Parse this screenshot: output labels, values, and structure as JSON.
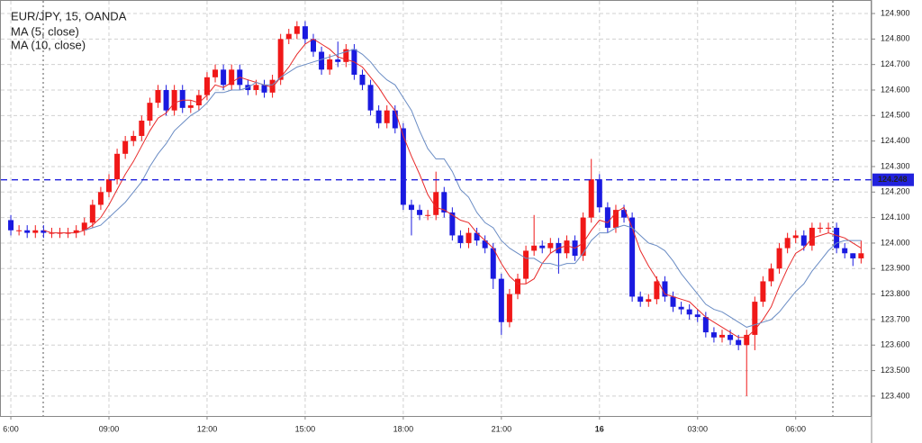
{
  "chart_data": {
    "type": "candlestick",
    "title": "EUR/JPY, 15, OANDA",
    "up_color": "#f01818",
    "down_color": "#1a1ae0",
    "categories": [
      "6:00",
      null,
      null,
      null,
      null,
      null,
      null,
      null,
      null,
      null,
      null,
      null,
      "09:00",
      null,
      null,
      null,
      null,
      null,
      null,
      null,
      null,
      null,
      null,
      null,
      "12:00",
      null,
      null,
      null,
      null,
      null,
      null,
      null,
      null,
      null,
      null,
      null,
      "15:00",
      null,
      null,
      null,
      null,
      null,
      null,
      null,
      null,
      null,
      null,
      null,
      "18:00",
      null,
      null,
      null,
      null,
      null,
      null,
      null,
      null,
      null,
      null,
      null,
      "21:00",
      null,
      null,
      null,
      null,
      null,
      null,
      null,
      null,
      null,
      null,
      null,
      "16",
      null,
      null,
      null,
      null,
      null,
      null,
      null,
      null,
      null,
      null,
      null,
      "03:00",
      null,
      null,
      null,
      null,
      null,
      null,
      null,
      null,
      null,
      null,
      null,
      "06:00",
      null,
      null,
      null,
      null,
      null,
      null,
      null,
      null
    ],
    "ohlc": [
      [
        124.09,
        124.11,
        124.03,
        124.05
      ],
      [
        124.05,
        124.07,
        124.03,
        124.05
      ],
      [
        124.05,
        124.07,
        124.02,
        124.04
      ],
      [
        124.04,
        124.07,
        124.02,
        124.05
      ],
      [
        124.05,
        124.07,
        124.02,
        124.04
      ],
      [
        124.04,
        124.06,
        124.02,
        124.04
      ],
      [
        124.04,
        124.06,
        124.02,
        124.04
      ],
      [
        124.04,
        124.06,
        124.02,
        124.04
      ],
      [
        124.04,
        124.07,
        124.02,
        124.05
      ],
      [
        124.05,
        124.1,
        124.03,
        124.08
      ],
      [
        124.08,
        124.17,
        124.06,
        124.15
      ],
      [
        124.15,
        124.22,
        124.13,
        124.2
      ],
      [
        124.2,
        124.27,
        124.18,
        124.25
      ],
      [
        124.25,
        124.37,
        124.23,
        124.35
      ],
      [
        124.35,
        124.42,
        124.33,
        124.4
      ],
      [
        124.4,
        124.44,
        124.38,
        124.42
      ],
      [
        124.42,
        124.5,
        124.4,
        124.48
      ],
      [
        124.48,
        124.57,
        124.46,
        124.55
      ],
      [
        124.55,
        124.62,
        124.53,
        124.6
      ],
      [
        124.6,
        124.62,
        124.5,
        124.52
      ],
      [
        124.52,
        124.62,
        124.5,
        124.6
      ],
      [
        124.6,
        124.62,
        124.51,
        124.53
      ],
      [
        124.53,
        124.56,
        124.51,
        124.54
      ],
      [
        124.54,
        124.6,
        124.52,
        124.58
      ],
      [
        124.58,
        124.67,
        124.56,
        124.65
      ],
      [
        124.65,
        124.7,
        124.63,
        124.68
      ],
      [
        124.68,
        124.7,
        124.6,
        124.62
      ],
      [
        124.62,
        124.7,
        124.6,
        124.68
      ],
      [
        124.68,
        124.7,
        124.6,
        124.62
      ],
      [
        124.62,
        124.64,
        124.58,
        124.6
      ],
      [
        124.6,
        124.64,
        124.58,
        124.62
      ],
      [
        124.62,
        124.64,
        124.57,
        124.59
      ],
      [
        124.59,
        124.66,
        124.57,
        124.64
      ],
      [
        124.64,
        124.82,
        124.62,
        124.8
      ],
      [
        124.8,
        124.84,
        124.78,
        124.82
      ],
      [
        124.82,
        124.87,
        124.8,
        124.85
      ],
      [
        124.85,
        124.87,
        124.78,
        124.8
      ],
      [
        124.8,
        124.82,
        124.73,
        124.75
      ],
      [
        124.75,
        124.77,
        124.66,
        124.68
      ],
      [
        124.68,
        124.74,
        124.66,
        124.72
      ],
      [
        124.72,
        124.79,
        124.69,
        124.71
      ],
      [
        124.71,
        124.78,
        124.69,
        124.76
      ],
      [
        124.76,
        124.78,
        124.64,
        124.66
      ],
      [
        124.66,
        124.68,
        124.6,
        124.62
      ],
      [
        124.62,
        124.64,
        124.5,
        124.52
      ],
      [
        124.52,
        124.54,
        124.45,
        124.47
      ],
      [
        124.47,
        124.54,
        124.45,
        124.52
      ],
      [
        124.52,
        124.54,
        124.43,
        124.45
      ],
      [
        124.45,
        124.47,
        124.13,
        124.15
      ],
      [
        124.15,
        124.17,
        124.03,
        124.13
      ],
      [
        124.13,
        124.15,
        124.09,
        124.11
      ],
      [
        124.11,
        124.13,
        124.09,
        124.11
      ],
      [
        124.11,
        124.28,
        124.09,
        124.2
      ],
      [
        124.2,
        124.22,
        124.1,
        124.12
      ],
      [
        124.12,
        124.14,
        124.01,
        124.03
      ],
      [
        124.03,
        124.05,
        123.98,
        124.0
      ],
      [
        124.0,
        124.06,
        123.98,
        124.04
      ],
      [
        124.04,
        124.06,
        123.99,
        124.01
      ],
      [
        124.01,
        124.03,
        123.96,
        123.98
      ],
      [
        123.98,
        124.0,
        123.82,
        123.86
      ],
      [
        123.86,
        123.88,
        123.64,
        123.69
      ],
      [
        123.69,
        123.82,
        123.67,
        123.8
      ],
      [
        123.8,
        123.88,
        123.78,
        123.86
      ],
      [
        123.86,
        123.99,
        123.84,
        123.97
      ],
      [
        123.97,
        124.11,
        123.95,
        123.99
      ],
      [
        123.99,
        124.01,
        123.96,
        123.98
      ],
      [
        123.98,
        124.02,
        123.96,
        124.0
      ],
      [
        124.0,
        124.02,
        123.88,
        123.96
      ],
      [
        123.96,
        124.03,
        123.94,
        124.01
      ],
      [
        124.01,
        124.03,
        123.93,
        123.95
      ],
      [
        123.95,
        124.12,
        123.93,
        124.1
      ],
      [
        124.1,
        124.33,
        124.08,
        124.25
      ],
      [
        124.25,
        124.27,
        124.12,
        124.14
      ],
      [
        124.14,
        124.16,
        124.04,
        124.06
      ],
      [
        124.06,
        124.15,
        124.04,
        124.13
      ],
      [
        124.13,
        124.15,
        124.08,
        124.1
      ],
      [
        124.1,
        124.12,
        123.77,
        123.79
      ],
      [
        123.79,
        123.81,
        123.75,
        123.77
      ],
      [
        123.77,
        123.8,
        123.75,
        123.78
      ],
      [
        123.78,
        123.87,
        123.76,
        123.85
      ],
      [
        123.85,
        123.87,
        123.77,
        123.79
      ],
      [
        123.79,
        123.81,
        123.73,
        123.75
      ],
      [
        123.75,
        123.77,
        123.72,
        123.74
      ],
      [
        123.74,
        123.76,
        123.7,
        123.72
      ],
      [
        123.72,
        123.74,
        123.69,
        123.71
      ],
      [
        123.71,
        123.73,
        123.63,
        123.65
      ],
      [
        123.65,
        123.67,
        123.61,
        123.63
      ],
      [
        123.63,
        123.66,
        123.61,
        123.64
      ],
      [
        123.64,
        123.66,
        123.6,
        123.62
      ],
      [
        123.62,
        123.64,
        123.58,
        123.6
      ],
      [
        123.6,
        123.66,
        123.4,
        123.64
      ],
      [
        123.64,
        123.79,
        123.58,
        123.77
      ],
      [
        123.77,
        123.87,
        123.75,
        123.85
      ],
      [
        123.85,
        123.92,
        123.83,
        123.9
      ],
      [
        123.9,
        124.0,
        123.88,
        123.98
      ],
      [
        123.98,
        124.04,
        123.96,
        124.02
      ],
      [
        124.02,
        124.05,
        124.0,
        124.03
      ],
      [
        124.03,
        124.05,
        123.97,
        123.99
      ],
      [
        123.99,
        124.08,
        123.97,
        124.06
      ],
      [
        124.06,
        124.08,
        124.04,
        124.06
      ],
      [
        124.06,
        124.08,
        124.04,
        124.06
      ],
      [
        124.06,
        124.08,
        123.96,
        123.98
      ],
      [
        123.98,
        124.0,
        123.94,
        123.96
      ],
      [
        123.96,
        123.96,
        123.91,
        123.94
      ],
      [
        123.94,
        124.01,
        123.92,
        123.96
      ]
    ],
    "series": [
      {
        "name": "MA (5, close)",
        "color": "#e82a2a",
        "values": [
          null,
          null,
          null,
          null,
          124.05,
          124.04,
          124.04,
          124.04,
          124.04,
          124.05,
          124.07,
          124.1,
          124.15,
          124.21,
          124.27,
          124.32,
          124.38,
          124.44,
          124.49,
          124.51,
          124.55,
          124.56,
          124.56,
          124.55,
          124.58,
          124.62,
          124.61,
          124.63,
          124.65,
          124.64,
          124.63,
          124.62,
          124.61,
          124.65,
          124.69,
          124.74,
          124.78,
          124.8,
          124.78,
          124.76,
          124.73,
          124.72,
          124.71,
          124.69,
          124.65,
          124.61,
          124.56,
          124.52,
          124.42,
          124.34,
          124.27,
          124.19,
          124.14,
          124.13,
          124.11,
          124.09,
          124.08,
          124.04,
          124.01,
          123.98,
          123.92,
          123.87,
          123.84,
          123.84,
          123.86,
          123.92,
          123.96,
          123.98,
          123.99,
          123.98,
          124.0,
          124.05,
          124.09,
          124.08,
          124.12,
          124.14,
          124.06,
          123.97,
          123.91,
          123.86,
          123.8,
          123.79,
          123.78,
          123.77,
          123.74,
          123.71,
          123.69,
          123.67,
          123.65,
          123.63,
          123.63,
          123.66,
          123.7,
          123.75,
          123.83,
          123.9,
          123.96,
          123.98,
          124.02,
          124.03,
          124.04,
          124.03,
          124.02,
          124.0,
          123.98
        ]
      },
      {
        "name": "MA (10, close)",
        "color": "#6a8cc4",
        "values": [
          null,
          null,
          null,
          null,
          null,
          null,
          null,
          null,
          null,
          124.05,
          124.06,
          124.07,
          124.1,
          124.13,
          124.16,
          124.2,
          124.24,
          124.3,
          124.35,
          124.39,
          124.44,
          124.47,
          124.5,
          124.52,
          124.55,
          124.59,
          124.59,
          124.6,
          124.6,
          124.61,
          124.63,
          124.62,
          124.62,
          124.65,
          124.67,
          124.69,
          124.7,
          124.71,
          124.72,
          124.73,
          124.74,
          124.75,
          124.76,
          124.74,
          124.71,
          124.67,
          124.64,
          124.62,
          124.57,
          124.52,
          124.44,
          124.37,
          124.33,
          124.33,
          124.28,
          124.21,
          124.18,
          124.12,
          124.08,
          124.06,
          124.01,
          123.98,
          123.96,
          123.94,
          123.94,
          123.92,
          123.92,
          123.91,
          123.92,
          123.92,
          123.96,
          124.01,
          124.04,
          124.04,
          124.06,
          124.07,
          124.06,
          124.03,
          124.0,
          123.99,
          123.97,
          123.93,
          123.88,
          123.84,
          123.8,
          123.76,
          123.74,
          123.73,
          123.71,
          123.69,
          123.67,
          123.68,
          123.69,
          123.7,
          123.73,
          123.77,
          123.81,
          123.84,
          123.89,
          123.93,
          123.97,
          124.0,
          124.01,
          124.01,
          124.01
        ]
      }
    ],
    "price_line": {
      "value": 124.248,
      "label": "124.248",
      "color": "#2222dd"
    },
    "ylim": [
      123.322,
      124.953
    ],
    "yticks": [
      {
        "value": 123.4,
        "label": "123.400"
      },
      {
        "value": 123.5,
        "label": "123.500"
      },
      {
        "value": 123.6,
        "label": "123.600"
      },
      {
        "value": 123.7,
        "label": "123.700"
      },
      {
        "value": 123.8,
        "label": "123.800"
      },
      {
        "value": 123.9,
        "label": "123.900"
      },
      {
        "value": 124.0,
        "label": "124.000"
      },
      {
        "value": 124.1,
        "label": "124.100"
      },
      {
        "value": 124.2,
        "label": "124.200"
      },
      {
        "value": 124.3,
        "label": "124.300"
      },
      {
        "value": 124.4,
        "label": "124.400"
      },
      {
        "value": 124.5,
        "label": "124.500"
      },
      {
        "value": 124.6,
        "label": "124.600"
      },
      {
        "value": 124.7,
        "label": "124.700"
      },
      {
        "value": 124.8,
        "label": "124.800"
      },
      {
        "value": 124.9,
        "label": "124.900"
      }
    ],
    "grid": true
  }
}
